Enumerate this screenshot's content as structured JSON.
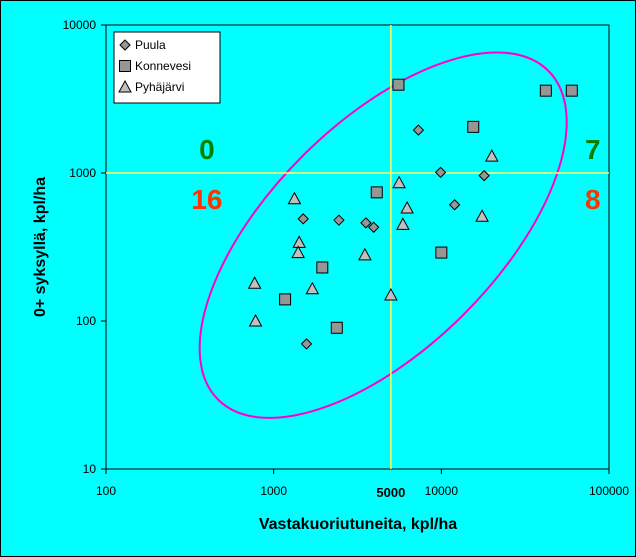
{
  "chart_data": {
    "type": "scatter",
    "xlabel": "Vastakuoriutuneita, kpl/ha",
    "ylabel": "0+ syksyllä, kpl/ha",
    "xscale": "log",
    "yscale": "log",
    "xlim": [
      100,
      100000
    ],
    "ylim": [
      10,
      10000
    ],
    "x_ticks": [
      "100",
      "1000",
      "10000",
      "100000"
    ],
    "y_ticks": [
      "10",
      "100",
      "1000",
      "10000"
    ],
    "x_extra_tick": "5000",
    "reference_lines": {
      "x": 5000,
      "y": 1000,
      "color": "#FFFF66"
    },
    "background": "#00FFFF",
    "ellipse_color": "#FF00CC",
    "legend_position": "top-left",
    "quadrant_counts": [
      {
        "label": "0",
        "quadrant": "upper-left",
        "color": "#008000"
      },
      {
        "label": "7",
        "quadrant": "upper-right",
        "color": "#008000"
      },
      {
        "label": "16",
        "quadrant": "lower-left",
        "color": "#FF3300"
      },
      {
        "label": "8",
        "quadrant": "lower-right",
        "color": "#FF3300"
      }
    ],
    "series": [
      {
        "name": "Puula",
        "marker": "diamond",
        "color": "#969696",
        "points": [
          [
            1500,
            490
          ],
          [
            2450,
            480
          ],
          [
            3550,
            460
          ],
          [
            3950,
            430
          ],
          [
            7300,
            1950
          ],
          [
            9900,
            1010
          ],
          [
            12000,
            610
          ],
          [
            18000,
            960
          ],
          [
            1570,
            70
          ]
        ]
      },
      {
        "name": "Konnevesi",
        "marker": "square",
        "color": "#969696",
        "points": [
          [
            5550,
            3950
          ],
          [
            15500,
            2050
          ],
          [
            42000,
            3600
          ],
          [
            60000,
            3600
          ],
          [
            4120,
            740
          ],
          [
            10000,
            290
          ],
          [
            1950,
            230
          ],
          [
            1170,
            140
          ],
          [
            2380,
            90
          ]
        ]
      },
      {
        "name": "Pyhäjärvi",
        "marker": "triangle",
        "color": "#C0C0C0",
        "points": [
          [
            1330,
            670
          ],
          [
            1420,
            340
          ],
          [
            1400,
            290
          ],
          [
            1700,
            165
          ],
          [
            770,
            180
          ],
          [
            780,
            100
          ],
          [
            3500,
            280
          ],
          [
            5000,
            150
          ],
          [
            5600,
            860
          ],
          [
            6250,
            580
          ],
          [
            5900,
            450
          ],
          [
            17500,
            510
          ],
          [
            20000,
            1300
          ]
        ]
      }
    ]
  }
}
